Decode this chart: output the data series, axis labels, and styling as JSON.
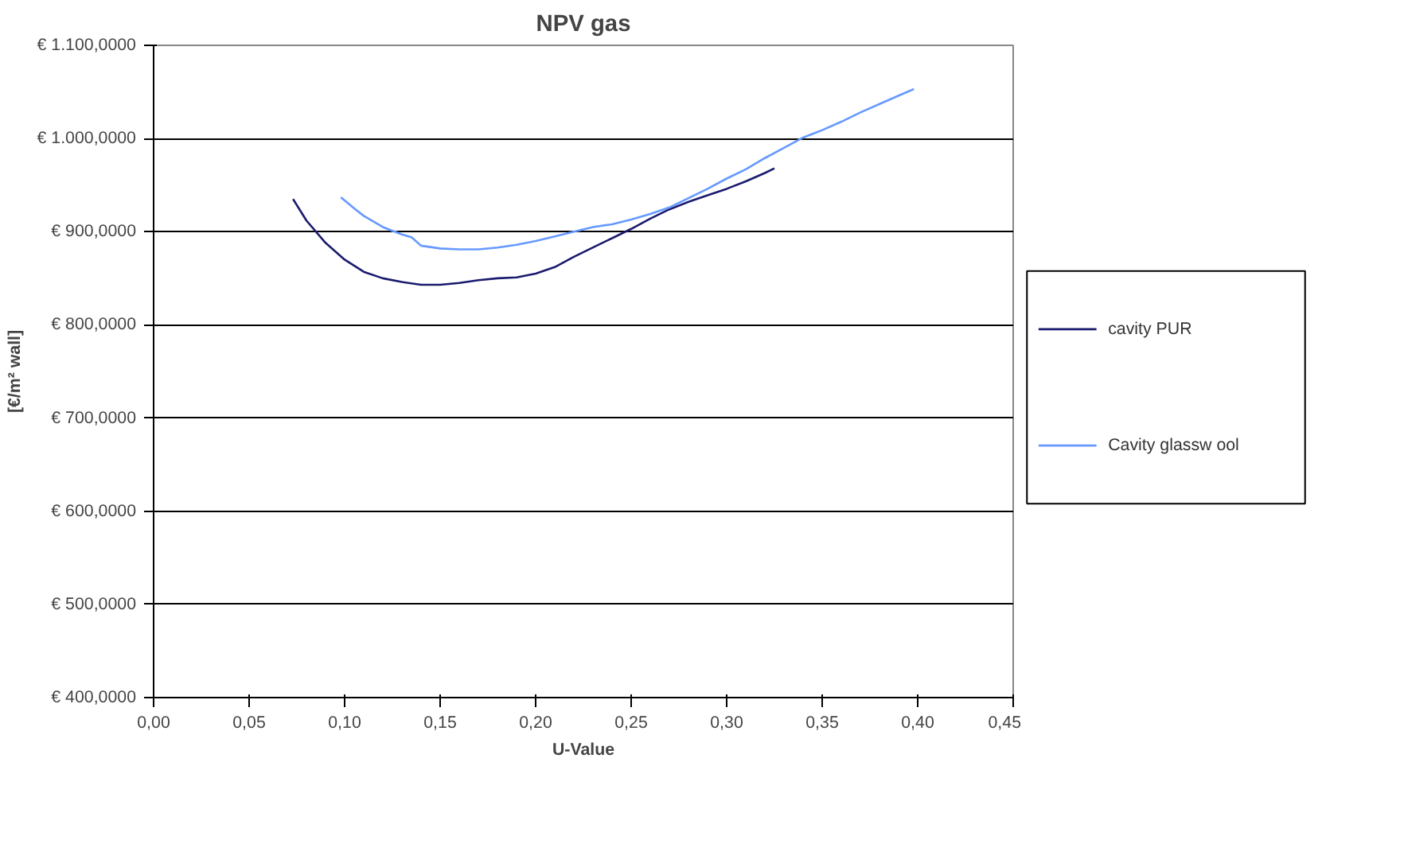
{
  "chart_data": {
    "type": "line",
    "title": "NPV gas",
    "xlabel": "U-Value",
    "ylabel": "[€/m² wall]",
    "xlim": [
      0,
      0.45
    ],
    "xticks": [
      {
        "value": 0,
        "label": "0,00"
      },
      {
        "value": 0.05,
        "label": "0,05"
      },
      {
        "value": 0.1,
        "label": "0,10"
      },
      {
        "value": 0.15,
        "label": "0,15"
      },
      {
        "value": 0.2,
        "label": "0,20"
      },
      {
        "value": 0.25,
        "label": "0,25"
      },
      {
        "value": 0.3,
        "label": "0,30"
      },
      {
        "value": 0.35,
        "label": "0,35"
      },
      {
        "value": 0.4,
        "label": "0,40"
      },
      {
        "value": 0.45,
        "label": "0,45"
      }
    ],
    "ylim": [
      400,
      1100
    ],
    "yticks": [
      {
        "value": 400,
        "label": "€ 400,0000"
      },
      {
        "value": 500,
        "label": "€ 500,0000"
      },
      {
        "value": 600,
        "label": "€ 600,0000"
      },
      {
        "value": 700,
        "label": "€ 700,0000"
      },
      {
        "value": 800,
        "label": "€ 800,0000"
      },
      {
        "value": 900,
        "label": "€ 900,0000"
      },
      {
        "value": 1000,
        "label": "€ 1.000,0000"
      },
      {
        "value": 1100,
        "label": "€ 1.100,0000"
      }
    ],
    "grid": "y",
    "legend": "right",
    "marker": "none",
    "line_style": "solid",
    "series": [
      {
        "name": "cavity PUR",
        "color": "#1a1a6e",
        "x": [
          0.073,
          0.08,
          0.09,
          0.1,
          0.11,
          0.12,
          0.13,
          0.14,
          0.15,
          0.16,
          0.17,
          0.18,
          0.19,
          0.2,
          0.21,
          0.22,
          0.23,
          0.24,
          0.25,
          0.26,
          0.27,
          0.28,
          0.29,
          0.3,
          0.31,
          0.32,
          0.325
        ],
        "values": [
          935,
          912,
          888,
          870,
          857,
          850,
          846,
          843,
          843,
          845,
          848,
          850,
          851,
          855,
          862,
          873,
          883,
          893,
          903,
          914,
          924,
          932,
          939,
          946,
          954,
          963,
          968
        ]
      },
      {
        "name": "Cavity glassw ool",
        "color": "#6699ff",
        "x": [
          0.098,
          0.105,
          0.11,
          0.12,
          0.13,
          0.135,
          0.14,
          0.15,
          0.16,
          0.17,
          0.18,
          0.19,
          0.2,
          0.21,
          0.22,
          0.23,
          0.24,
          0.25,
          0.26,
          0.27,
          0.28,
          0.29,
          0.3,
          0.31,
          0.32,
          0.33,
          0.34,
          0.35,
          0.36,
          0.37,
          0.38,
          0.39,
          0.398
        ],
        "values": [
          937,
          925,
          917,
          905,
          897,
          894,
          885,
          882,
          881,
          881,
          883,
          886,
          890,
          895,
          900,
          905,
          908,
          913,
          919,
          926,
          936,
          946,
          957,
          967,
          979,
          990,
          1001,
          1009,
          1018,
          1028,
          1037,
          1046,
          1053
        ]
      }
    ]
  }
}
